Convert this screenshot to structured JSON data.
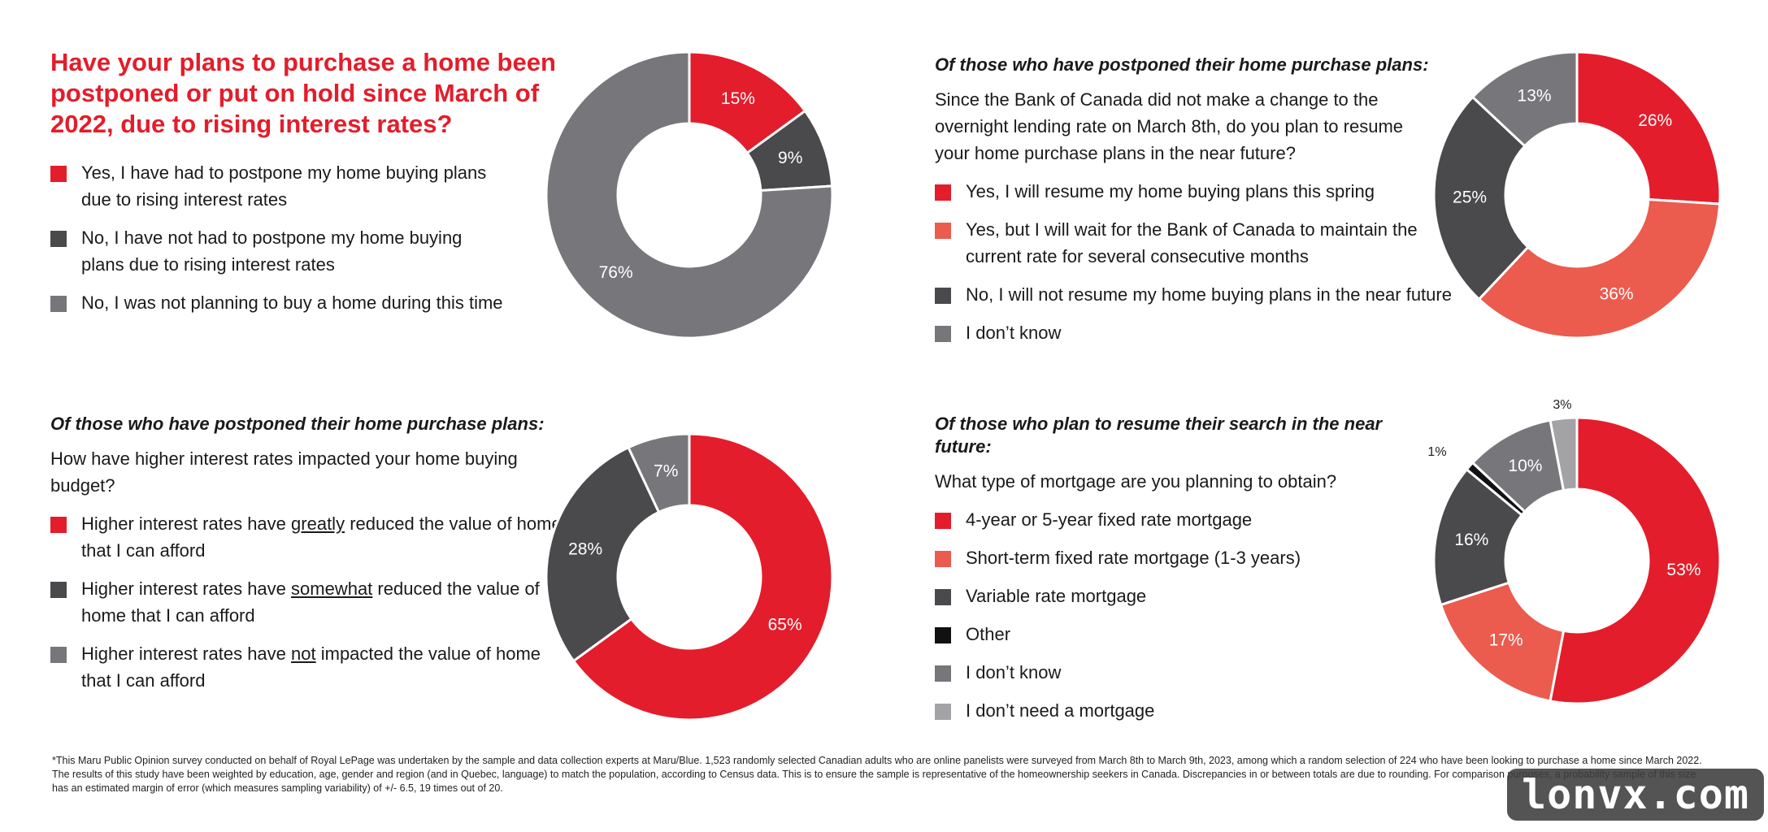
{
  "colors": {
    "red": "#e31d2b",
    "coral": "#eb5b4e",
    "dark": "#4a4a4c",
    "gray": "#77777b",
    "black": "#111111",
    "lightgray": "#a3a3a6"
  },
  "panel1": {
    "title": "Have your plans to purchase a home been postponed or put on hold since March of 2022, due to rising interest rates?",
    "legend": [
      {
        "label": "Yes, I have had to postpone my home buying plans due to rising interest rates",
        "color": "#e31d2b"
      },
      {
        "label": "No, I have not had to postpone my home buying plans due to rising interest rates",
        "color": "#4a4a4c"
      },
      {
        "label": "No, I was not planning to buy a home during this time",
        "color": "#77777b"
      }
    ]
  },
  "panel2": {
    "intro": "Of those who have postponed their home purchase plans:",
    "question": "Since the Bank of Canada did not make a change to the overnight lending rate on March 8th, do you plan to resume your home purchase plans in the near future?",
    "legend": [
      {
        "label": "Yes, I will resume my home buying plans this spring",
        "color": "#e31d2b"
      },
      {
        "label": "Yes, but I will wait for the Bank of Canada to maintain the current rate for several consecutive months",
        "color": "#eb5b4e"
      },
      {
        "label": "No, I will not resume my home buying plans in the near future",
        "color": "#4a4a4c"
      },
      {
        "label": "I don’t know",
        "color": "#77777b"
      }
    ]
  },
  "panel3": {
    "intro": "Of those who have postponed their home purchase plans:",
    "question": "How have higher interest rates impacted your home buying budget?",
    "legend": [
      {
        "pre": "Higher interest rates have ",
        "u": "greatly",
        "post": " reduced the value of home that I can afford",
        "color": "#e31d2b"
      },
      {
        "pre": "Higher interest rates have ",
        "u": "somewhat",
        "post": " reduced the value of home that I can afford",
        "color": "#4a4a4c"
      },
      {
        "pre": "Higher interest rates have ",
        "u": "not",
        "post": " impacted the value of home that I can afford",
        "color": "#77777b"
      }
    ]
  },
  "panel4": {
    "intro": "Of those who plan to resume their search in the near future:",
    "question": "What type of mortgage are you planning to obtain?",
    "legend": [
      {
        "label": "4-year or 5-year fixed rate mortgage",
        "color": "#e31d2b"
      },
      {
        "label": "Short-term fixed rate mortgage (1-3 years)",
        "color": "#eb5b4e"
      },
      {
        "label": "Variable rate mortgage",
        "color": "#4a4a4c"
      },
      {
        "label": "Other",
        "color": "#111111"
      },
      {
        "label": "I don’t know",
        "color": "#77777b"
      },
      {
        "label": "I don’t need a mortgage",
        "color": "#a3a3a6"
      }
    ]
  },
  "chart_data": [
    {
      "type": "pie",
      "donut": true,
      "categories": [
        "Yes, I have had to postpone my home buying plans due to rising interest rates",
        "No, I have not had to postpone my home buying plans due to rising interest rates",
        "No, I was not planning to buy a home during this time"
      ],
      "values": [
        15,
        9,
        76
      ],
      "labels": [
        "15%",
        "9%",
        "76%"
      ],
      "colors": [
        "#e31d2b",
        "#4a4a4c",
        "#77777b"
      ]
    },
    {
      "type": "pie",
      "donut": true,
      "categories": [
        "Yes, I will resume my home buying plans this spring",
        "Yes, but I will wait for the Bank of Canada to maintain the current rate for several consecutive months",
        "No, I will not resume my home buying plans in the near future",
        "I don’t know"
      ],
      "values": [
        26,
        36,
        25,
        13
      ],
      "labels": [
        "26%",
        "36%",
        "25%",
        "13%"
      ],
      "colors": [
        "#e31d2b",
        "#eb5b4e",
        "#4a4a4c",
        "#77777b"
      ]
    },
    {
      "type": "pie",
      "donut": true,
      "categories": [
        "Higher interest rates have greatly reduced the value of home that I can afford",
        "Higher interest rates have somewhat reduced the value of home that I can afford",
        "Higher interest rates have not impacted the value of home that I can afford"
      ],
      "values": [
        65,
        28,
        7
      ],
      "labels": [
        "65%",
        "28%",
        "7%"
      ],
      "colors": [
        "#e31d2b",
        "#4a4a4c",
        "#77777b"
      ]
    },
    {
      "type": "pie",
      "donut": true,
      "categories": [
        "4-year or 5-year fixed rate mortgage",
        "Short-term fixed rate mortgage (1-3 years)",
        "Variable rate mortgage",
        "Other",
        "I don’t know",
        "I don’t need a mortgage"
      ],
      "values": [
        53,
        17,
        16,
        1,
        10,
        3
      ],
      "labels": [
        "53%",
        "17%",
        "16%",
        "1%",
        "10%",
        "3%"
      ],
      "colors": [
        "#e31d2b",
        "#eb5b4e",
        "#4a4a4c",
        "#111111",
        "#77777b",
        "#a3a3a6"
      ]
    }
  ],
  "footnote": "*This Maru Public Opinion survey conducted on behalf of Royal LePage was undertaken by the sample and data collection experts at Maru/Blue. 1,523 randomly selected Canadian adults who are online panelists were surveyed from March 8th to March 9th, 2023, among which a random selection of 224 who have been looking to purchase a home since March 2022. The results of this study have been weighted by education, age, gender and region (and in Quebec, language) to match the population, according to Census data. This is to ensure the sample is representative of the homeownership seekers in Canada. Discrepancies in or between totals are due to rounding. For comparison purposes, a probability sample of this size has an estimated margin of error (which measures sampling variability) of +/- 6.5, 19 times out of 20.",
  "watermark": "lonvx.com"
}
